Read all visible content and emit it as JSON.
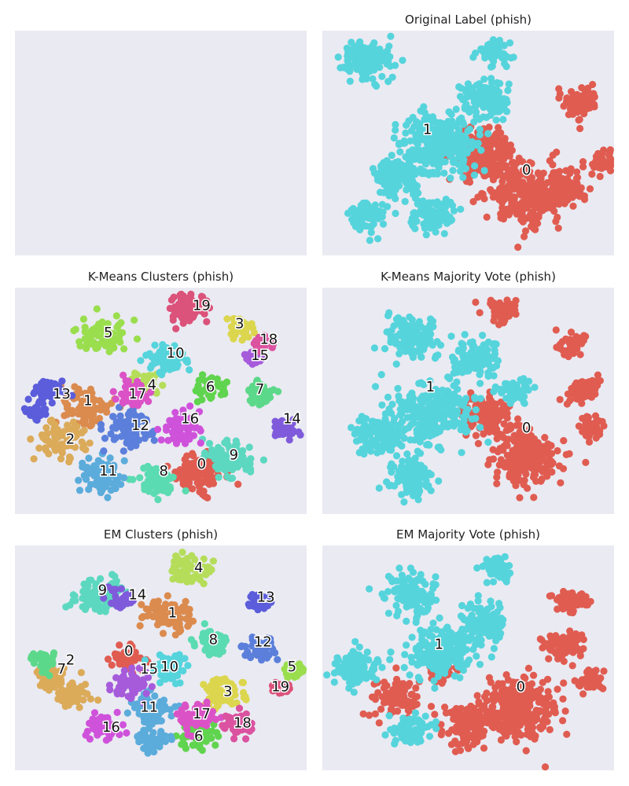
{
  "figure": {
    "background": "#ffffff",
    "panel_background": "#eaeaf2"
  },
  "chart_data": [
    {
      "type": "scatter",
      "panel": "empty",
      "title": "",
      "clusters": []
    },
    {
      "type": "scatter",
      "panel": "original-label",
      "title": "Original Label (phish)",
      "palette": [
        "#e05c51",
        "#56d4dc"
      ],
      "clusters": [
        {
          "label": "0",
          "color_index": 0,
          "label_xy": [
            0.7,
            0.62
          ],
          "n": 380,
          "spread": 0.16,
          "blobs": [
            [
              0.7,
              0.72,
              0.12
            ],
            [
              0.55,
              0.55,
              0.1
            ],
            [
              0.88,
              0.32,
              0.06
            ],
            [
              0.83,
              0.7,
              0.06
            ],
            [
              0.97,
              0.58,
              0.04
            ]
          ]
        },
        {
          "label": "1",
          "color_index": 1,
          "label_xy": [
            0.36,
            0.44
          ],
          "n": 380,
          "spread": 0.18,
          "blobs": [
            [
              0.15,
              0.13,
              0.08
            ],
            [
              0.56,
              0.3,
              0.08
            ],
            [
              0.4,
              0.5,
              0.12
            ],
            [
              0.25,
              0.65,
              0.08
            ],
            [
              0.15,
              0.82,
              0.06
            ],
            [
              0.59,
              0.1,
              0.05
            ],
            [
              0.38,
              0.82,
              0.07
            ]
          ]
        }
      ]
    },
    {
      "type": "scatter",
      "panel": "kmeans-clusters",
      "title": "K-Means Clusters (phish)",
      "palette": [
        "#e05c51",
        "#db8b4e",
        "#dbab5a",
        "#dbd64e",
        "#b5dd5a",
        "#9ade4e",
        "#60d44e",
        "#5cd88a",
        "#5bdbb1",
        "#5dd8c0",
        "#56d4dc",
        "#5bacdb",
        "#5b7fdb",
        "#5b5ddb",
        "#7f5bdb",
        "#a65bdb",
        "#cf52db",
        "#db52c6",
        "#db52a0",
        "#db527a"
      ],
      "clusters": [
        {
          "label": "0",
          "color_index": 0,
          "label_xy": [
            0.64,
            0.78
          ],
          "blobs": [
            [
              0.63,
              0.82,
              0.08
            ]
          ]
        },
        {
          "label": "1",
          "color_index": 1,
          "label_xy": [
            0.25,
            0.5
          ],
          "blobs": [
            [
              0.24,
              0.53,
              0.07
            ]
          ]
        },
        {
          "label": "2",
          "color_index": 2,
          "label_xy": [
            0.19,
            0.67
          ],
          "blobs": [
            [
              0.16,
              0.67,
              0.07
            ]
          ]
        },
        {
          "label": "3",
          "color_index": 3,
          "label_xy": [
            0.77,
            0.16
          ],
          "blobs": [
            [
              0.77,
              0.18,
              0.04
            ]
          ]
        },
        {
          "label": "4",
          "color_index": 4,
          "label_xy": [
            0.47,
            0.43
          ],
          "blobs": [
            [
              0.44,
              0.43,
              0.05
            ]
          ]
        },
        {
          "label": "5",
          "color_index": 5,
          "label_xy": [
            0.32,
            0.2
          ],
          "blobs": [
            [
              0.3,
              0.22,
              0.07
            ]
          ]
        },
        {
          "label": "6",
          "color_index": 6,
          "label_xy": [
            0.67,
            0.44
          ],
          "blobs": [
            [
              0.67,
              0.44,
              0.05
            ]
          ]
        },
        {
          "label": "7",
          "color_index": 7,
          "label_xy": [
            0.84,
            0.45
          ],
          "blobs": [
            [
              0.84,
              0.47,
              0.05
            ]
          ]
        },
        {
          "label": "8",
          "color_index": 8,
          "label_xy": [
            0.51,
            0.81
          ],
          "blobs": [
            [
              0.49,
              0.86,
              0.06
            ]
          ]
        },
        {
          "label": "9",
          "color_index": 9,
          "label_xy": [
            0.75,
            0.74
          ],
          "blobs": [
            [
              0.74,
              0.76,
              0.07
            ]
          ]
        },
        {
          "label": "10",
          "color_index": 10,
          "label_xy": [
            0.55,
            0.29
          ],
          "blobs": [
            [
              0.52,
              0.32,
              0.06
            ]
          ]
        },
        {
          "label": "11",
          "color_index": 11,
          "label_xy": [
            0.32,
            0.81
          ],
          "blobs": [
            [
              0.3,
              0.84,
              0.07
            ]
          ]
        },
        {
          "label": "12",
          "color_index": 12,
          "label_xy": [
            0.43,
            0.61
          ],
          "blobs": [
            [
              0.39,
              0.62,
              0.07
            ]
          ]
        },
        {
          "label": "13",
          "color_index": 13,
          "label_xy": [
            0.16,
            0.47
          ],
          "blobs": [
            [
              0.12,
              0.45,
              0.05
            ],
            [
              0.07,
              0.55,
              0.03
            ]
          ]
        },
        {
          "label": "14",
          "color_index": 14,
          "label_xy": [
            0.95,
            0.58
          ],
          "blobs": [
            [
              0.93,
              0.62,
              0.04
            ]
          ]
        },
        {
          "label": "15",
          "color_index": 15,
          "label_xy": [
            0.84,
            0.3
          ],
          "blobs": [
            [
              0.82,
              0.31,
              0.03
            ]
          ]
        },
        {
          "label": "16",
          "color_index": 16,
          "label_xy": [
            0.6,
            0.58
          ],
          "blobs": [
            [
              0.57,
              0.62,
              0.06
            ]
          ]
        },
        {
          "label": "17",
          "color_index": 17,
          "label_xy": [
            0.42,
            0.47
          ],
          "blobs": [
            [
              0.4,
              0.47,
              0.05
            ]
          ]
        },
        {
          "label": "18",
          "color_index": 18,
          "label_xy": [
            0.87,
            0.23
          ],
          "blobs": [
            [
              0.85,
              0.25,
              0.03
            ]
          ]
        },
        {
          "label": "19",
          "color_index": 19,
          "label_xy": [
            0.64,
            0.08
          ],
          "blobs": [
            [
              0.6,
              0.09,
              0.06
            ]
          ]
        }
      ]
    },
    {
      "type": "scatter",
      "panel": "kmeans-majority",
      "title": "K-Means Majority Vote (phish)",
      "palette": [
        "#e05c51",
        "#56d4dc"
      ],
      "clusters": [
        {
          "label": "0",
          "color_index": 0,
          "label_xy": [
            0.7,
            0.62
          ],
          "blobs": [
            [
              0.7,
              0.75,
              0.11
            ],
            [
              0.56,
              0.56,
              0.08
            ],
            [
              0.9,
              0.45,
              0.05
            ],
            [
              0.85,
              0.25,
              0.04
            ],
            [
              0.93,
              0.62,
              0.04
            ],
            [
              0.62,
              0.1,
              0.05
            ]
          ]
        },
        {
          "label": "1",
          "color_index": 1,
          "label_xy": [
            0.37,
            0.44
          ],
          "blobs": [
            [
              0.3,
              0.22,
              0.08
            ],
            [
              0.52,
              0.32,
              0.08
            ],
            [
              0.38,
              0.55,
              0.12
            ],
            [
              0.2,
              0.65,
              0.08
            ],
            [
              0.3,
              0.84,
              0.07
            ],
            [
              0.66,
              0.46,
              0.05
            ]
          ]
        }
      ]
    },
    {
      "type": "scatter",
      "panel": "em-clusters",
      "title": "EM Clusters (phish)",
      "palette": [
        "#e05c51",
        "#db8b4e",
        "#dbab5a",
        "#dbd64e",
        "#b5dd5a",
        "#9ade4e",
        "#60d44e",
        "#5cd88a",
        "#5bdbb1",
        "#5dd8c0",
        "#56d4dc",
        "#5bacdb",
        "#5b7fdb",
        "#5b5ddb",
        "#7f5bdb",
        "#a65bdb",
        "#cf52db",
        "#db52c6",
        "#db52a0",
        "#db527a"
      ],
      "clusters": [
        {
          "label": "0",
          "color_index": 0,
          "label_xy": [
            0.39,
            0.47
          ],
          "blobs": [
            [
              0.38,
              0.5,
              0.05
            ]
          ]
        },
        {
          "label": "1",
          "color_index": 1,
          "label_xy": [
            0.54,
            0.3
          ],
          "blobs": [
            [
              0.52,
              0.31,
              0.07
            ]
          ]
        },
        {
          "label": "2",
          "color_index": 2,
          "label_xy": [
            0.19,
            0.51
          ],
          "blobs": [
            [
              0.12,
              0.58,
              0.05
            ],
            [
              0.2,
              0.66,
              0.05
            ]
          ]
        },
        {
          "label": "3",
          "color_index": 3,
          "label_xy": [
            0.73,
            0.65
          ],
          "blobs": [
            [
              0.72,
              0.66,
              0.06
            ]
          ]
        },
        {
          "label": "4",
          "color_index": 4,
          "label_xy": [
            0.63,
            0.1
          ],
          "blobs": [
            [
              0.6,
              0.11,
              0.06
            ]
          ]
        },
        {
          "label": "5",
          "color_index": 5,
          "label_xy": [
            0.95,
            0.54
          ],
          "blobs": [
            [
              0.95,
              0.56,
              0.03
            ]
          ]
        },
        {
          "label": "6",
          "color_index": 6,
          "label_xy": [
            0.63,
            0.85
          ],
          "blobs": [
            [
              0.62,
              0.85,
              0.05
            ]
          ]
        },
        {
          "label": "7",
          "color_index": 7,
          "label_xy": [
            0.16,
            0.55
          ],
          "blobs": [
            [
              0.1,
              0.52,
              0.04
            ]
          ]
        },
        {
          "label": "8",
          "color_index": 8,
          "label_xy": [
            0.68,
            0.42
          ],
          "blobs": [
            [
              0.67,
              0.43,
              0.05
            ]
          ]
        },
        {
          "label": "9",
          "color_index": 9,
          "label_xy": [
            0.3,
            0.2
          ],
          "blobs": [
            [
              0.28,
              0.22,
              0.07
            ]
          ]
        },
        {
          "label": "10",
          "color_index": 10,
          "label_xy": [
            0.53,
            0.54
          ],
          "blobs": [
            [
              0.53,
              0.54,
              0.06
            ]
          ]
        },
        {
          "label": "11",
          "color_index": 11,
          "label_xy": [
            0.46,
            0.72
          ],
          "blobs": [
            [
              0.46,
              0.72,
              0.06
            ],
            [
              0.48,
              0.86,
              0.05
            ]
          ]
        },
        {
          "label": "12",
          "color_index": 12,
          "label_xy": [
            0.85,
            0.43
          ],
          "blobs": [
            [
              0.84,
              0.46,
              0.05
            ]
          ]
        },
        {
          "label": "13",
          "color_index": 13,
          "label_xy": [
            0.86,
            0.23
          ],
          "blobs": [
            [
              0.84,
              0.25,
              0.04
            ]
          ]
        },
        {
          "label": "14",
          "color_index": 14,
          "label_xy": [
            0.42,
            0.22
          ],
          "blobs": [
            [
              0.36,
              0.24,
              0.04
            ]
          ]
        },
        {
          "label": "15",
          "color_index": 15,
          "label_xy": [
            0.46,
            0.55
          ],
          "blobs": [
            [
              0.4,
              0.62,
              0.06
            ]
          ]
        },
        {
          "label": "16",
          "color_index": 16,
          "label_xy": [
            0.33,
            0.81
          ],
          "blobs": [
            [
              0.3,
              0.8,
              0.05
            ]
          ]
        },
        {
          "label": "17",
          "color_index": 17,
          "label_xy": [
            0.64,
            0.75
          ],
          "blobs": [
            [
              0.62,
              0.76,
              0.06
            ]
          ]
        },
        {
          "label": "18",
          "color_index": 18,
          "label_xy": [
            0.78,
            0.79
          ],
          "blobs": [
            [
              0.77,
              0.79,
              0.05
            ]
          ]
        },
        {
          "label": "19",
          "color_index": 19,
          "label_xy": [
            0.91,
            0.63
          ],
          "blobs": [
            [
              0.91,
              0.64,
              0.03
            ]
          ]
        }
      ]
    },
    {
      "type": "scatter",
      "panel": "em-majority",
      "title": "EM Majority Vote (phish)",
      "palette": [
        "#e05c51",
        "#56d4dc"
      ],
      "clusters": [
        {
          "label": "0",
          "color_index": 0,
          "label_xy": [
            0.68,
            0.63
          ],
          "blobs": [
            [
              0.68,
              0.72,
              0.12
            ],
            [
              0.5,
              0.8,
              0.08
            ],
            [
              0.82,
              0.45,
              0.06
            ],
            [
              0.85,
              0.25,
              0.05
            ],
            [
              0.26,
              0.68,
              0.07
            ],
            [
              0.92,
              0.6,
              0.04
            ],
            [
              0.4,
              0.55,
              0.05
            ]
          ]
        },
        {
          "label": "1",
          "color_index": 1,
          "label_xy": [
            0.4,
            0.44
          ],
          "blobs": [
            [
              0.3,
              0.22,
              0.08
            ],
            [
              0.55,
              0.35,
              0.08
            ],
            [
              0.4,
              0.48,
              0.1
            ],
            [
              0.12,
              0.55,
              0.07
            ],
            [
              0.6,
              0.1,
              0.05
            ],
            [
              0.3,
              0.82,
              0.06
            ]
          ]
        }
      ]
    }
  ]
}
